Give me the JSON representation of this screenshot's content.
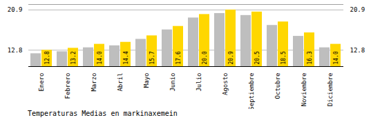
{
  "chart_data": {
    "type": "bar",
    "title": "Temperaturas Medias en markinaxemein",
    "categories": [
      "Enero",
      "Febrero",
      "Marzo",
      "Abril",
      "Mayo",
      "Junio",
      "Julio",
      "Agosto",
      "Septiembre",
      "Octubre",
      "Noviembre",
      "Diciembre"
    ],
    "series": [
      {
        "color": "#BEBEBE",
        "values": [
          12.1,
          12.5,
          13.3,
          13.7,
          15.0,
          16.9,
          19.3,
          20.2,
          19.8,
          17.8,
          15.6,
          13.3
        ]
      },
      {
        "color": "#FFD700",
        "values": [
          12.8,
          13.2,
          14.0,
          14.4,
          15.7,
          17.6,
          20.0,
          20.9,
          20.5,
          18.5,
          16.3,
          14.0
        ],
        "value_labels": [
          "12.8",
          "13.2",
          "14.0",
          "14.4",
          "15.7",
          "17.6",
          "20.0",
          "20.9",
          "20.5",
          "18.5",
          "16.3",
          "14.0"
        ],
        "data_labels": true
      }
    ],
    "ylim": [
      9.5,
      22.0
    ],
    "yticks": [
      12.8,
      20.9
    ],
    "grid": true
  }
}
